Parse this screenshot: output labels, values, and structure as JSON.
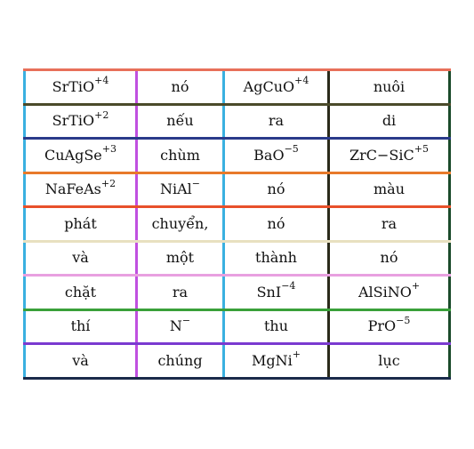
{
  "table": {
    "rows": [
      [
        {
          "base": "SrTiO",
          "sup": "+4"
        },
        {
          "base": "nó",
          "sup": ""
        },
        {
          "base": "AgCuO",
          "sup": "+4"
        },
        {
          "base": "nuôi",
          "sup": ""
        }
      ],
      [
        {
          "base": "SrTiO",
          "sup": "+2"
        },
        {
          "base": "nếu",
          "sup": ""
        },
        {
          "base": "ra",
          "sup": ""
        },
        {
          "base": "di",
          "sup": ""
        }
      ],
      [
        {
          "base": "CuAgSe",
          "sup": "+3"
        },
        {
          "base": "chùm",
          "sup": ""
        },
        {
          "base": "BaO",
          "sup": "−5"
        },
        {
          "base": "ZrC−SiC",
          "sup": "+5"
        }
      ],
      [
        {
          "base": "NaFeAs",
          "sup": "+2"
        },
        {
          "base": "NiAl",
          "sup": "−"
        },
        {
          "base": "nó",
          "sup": ""
        },
        {
          "base": "màu",
          "sup": ""
        }
      ],
      [
        {
          "base": "phát",
          "sup": ""
        },
        {
          "base": "chuyển,",
          "sup": ""
        },
        {
          "base": "nó",
          "sup": ""
        },
        {
          "base": "ra",
          "sup": ""
        }
      ],
      [
        {
          "base": "và",
          "sup": ""
        },
        {
          "base": "một",
          "sup": ""
        },
        {
          "base": "thành",
          "sup": ""
        },
        {
          "base": "nó",
          "sup": ""
        }
      ],
      [
        {
          "base": "chặt",
          "sup": ""
        },
        {
          "base": "ra",
          "sup": ""
        },
        {
          "base": "SnI",
          "sup": "−4"
        },
        {
          "base": "AlSiNO",
          "sup": "+"
        }
      ],
      [
        {
          "base": "thí",
          "sup": ""
        },
        {
          "base": "N",
          "sup": "−"
        },
        {
          "base": "thu",
          "sup": ""
        },
        {
          "base": "PrO",
          "sup": "−5"
        }
      ],
      [
        {
          "base": "và",
          "sup": ""
        },
        {
          "base": "chúng",
          "sup": ""
        },
        {
          "base": "MgNi",
          "sup": "+"
        },
        {
          "base": "lục",
          "sup": ""
        }
      ]
    ],
    "colors": {
      "hlines": [
        "#e8705a",
        "#4a4a2a",
        "#2a3a8a",
        "#e87a2a",
        "#e8502a",
        "#e8e0c0",
        "#e8a0e0",
        "#3aa03a",
        "#7a3ad0",
        "#1a2a4a"
      ],
      "vlines": [
        "#3ab0e0",
        "#c050e0",
        "#3ab0e0",
        "#2a2a1a",
        "#1a4a2a"
      ]
    }
  }
}
